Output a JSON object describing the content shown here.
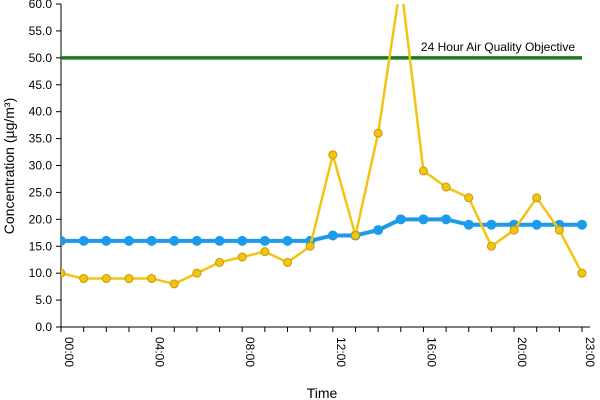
{
  "chart_data": {
    "type": "line",
    "ylabel": "Concentration (µg/m³)",
    "xlabel": "Time",
    "ylim": [
      0,
      60
    ],
    "yticks": [
      "0.0",
      "5.0",
      "10.0",
      "15.0",
      "20.0",
      "25.0",
      "30.0",
      "35.0",
      "40.0",
      "45.0",
      "50.0",
      "55.0",
      "60.0"
    ],
    "xticks": [
      "00:00",
      "04:00",
      "08:00",
      "12:00",
      "16:00",
      "20:00",
      "23:00"
    ],
    "xtick_hours": [
      0,
      4,
      8,
      12,
      16,
      20,
      23
    ],
    "hours": [
      0,
      1,
      2,
      3,
      4,
      5,
      6,
      7,
      8,
      9,
      10,
      11,
      12,
      13,
      14,
      15,
      16,
      17,
      18,
      19,
      20,
      21,
      22,
      23
    ],
    "series": [
      {
        "color": "#1E9BE8",
        "values": [
          16,
          16,
          16,
          16,
          16,
          16,
          16,
          16,
          16,
          16,
          16,
          16,
          17,
          17,
          18,
          20,
          20,
          20,
          19,
          19,
          19,
          19,
          19,
          19
        ]
      },
      {
        "color": "#F2C414",
        "values": [
          10,
          9,
          9,
          9,
          9,
          8,
          10,
          12,
          13,
          14,
          12,
          15,
          32,
          17,
          36,
          64,
          29,
          26,
          24,
          15,
          18,
          24,
          18,
          10
        ]
      }
    ],
    "objective": {
      "label": "24 Hour Air Quality Objective",
      "value": 50,
      "color": "#1E7A1E"
    },
    "grid": false
  }
}
